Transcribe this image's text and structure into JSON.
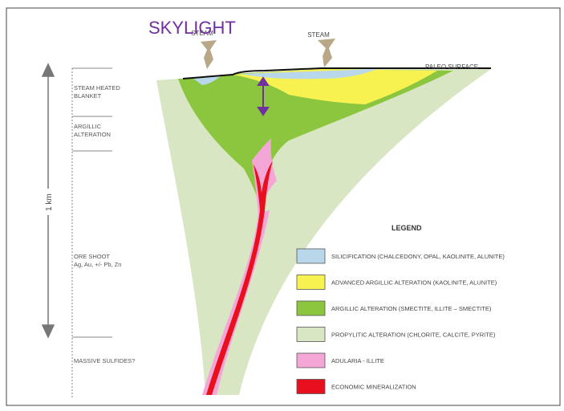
{
  "title": "SKYLIGHT",
  "steam_labels": [
    "STEAM",
    "STEAM"
  ],
  "surface_label": "PALEO SURFACE",
  "depth_scale": "1 km",
  "zones": [
    {
      "lines": [
        "STEAM HEATED",
        "BLANKET"
      ]
    },
    {
      "lines": [
        "ARGILLIC",
        "ALTERATION"
      ]
    },
    {
      "lines": [
        "ORE SHOOT",
        "Ag, Au, +/- Pb, Zn"
      ]
    },
    {
      "lines": [
        "MASSIVE SULFIDES?"
      ]
    }
  ],
  "legend": {
    "title": "LEGEND",
    "items": [
      {
        "label": "SILICIFICATION (CHALCEDONY, OPAL, KAOLINITE, ALUNITE)",
        "color": "#b9d7ea"
      },
      {
        "label": "ADVANCED ARGILLIC ALTERATION (KAOLINITE, ALUNITE)",
        "color": "#f7f250"
      },
      {
        "label": "ARGILLIC ALTERATION (SMECTITE, ILLITE – SMECTITE)",
        "color": "#8cc63f"
      },
      {
        "label": "PROPYLITIC ALTERATION (CHLORITE, CALCITE, PYRITE)",
        "color": "#d8e6c4"
      },
      {
        "label": "ADULARIA - ILLITE",
        "color": "#f4a6d7"
      },
      {
        "label": "ECONOMIC MINERALIZATION",
        "color": "#e8101e"
      }
    ]
  }
}
